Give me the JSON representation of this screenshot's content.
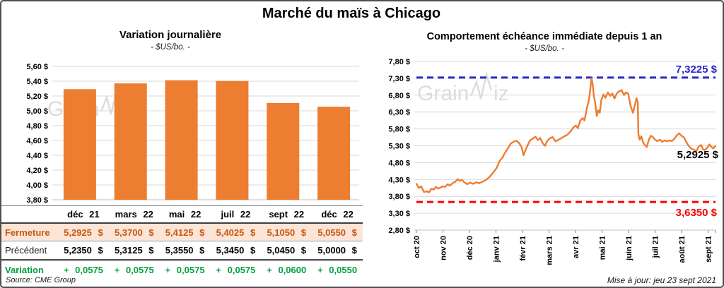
{
  "title": "Marché du maïs à Chicago",
  "footer": {
    "updated": "Mise à jour: jeu 23 sept 2021"
  },
  "watermark": {
    "left_text": "Grain",
    "right_text": "iz"
  },
  "colors": {
    "accent_orange": "#ED7D31",
    "fermeture_bg": "#FCE4D6",
    "fermeture_text": "#C55A11",
    "variation_green": "#00A13C",
    "high_blue": "#2929C8",
    "low_red": "#FE0000",
    "grid": "#D9D9D9",
    "axis": "#BFBFBF",
    "watermark": "#D9D9D9"
  },
  "table": {
    "columns": [
      "déc 21",
      "mars 22",
      "mai 22",
      "juil 22",
      "sept 22",
      "déc 22"
    ],
    "rows": [
      {
        "id": "fermeture",
        "label": "Fermeture",
        "values": [
          "5,2925 $",
          "5,3700 $",
          "5,4125 $",
          "5,4025 $",
          "5,1050 $",
          "5,0550 $"
        ]
      },
      {
        "id": "precedent",
        "label": "Précédent",
        "values": [
          "5,2350 $",
          "5,3125 $",
          "5,3550 $",
          "5,3450 $",
          "5,0450 $",
          "5,0000 $"
        ]
      },
      {
        "id": "variation",
        "label": "Variation",
        "values": [
          "+ 0,0575",
          "+ 0,0575",
          "+ 0,0575",
          "+ 0,0575",
          "+ 0,0600",
          "+ 0,0550"
        ]
      }
    ],
    "source": "Source: CME Group"
  },
  "chart_data": [
    {
      "id": "daily-variation",
      "type": "bar",
      "title": "Variation journalière",
      "subtitle": "- $US/bo. -",
      "categories": [
        "déc 21",
        "mars 22",
        "mai 22",
        "juil 22",
        "sept 22",
        "déc 22"
      ],
      "values": [
        5.2925,
        5.37,
        5.4125,
        5.4025,
        5.105,
        5.055
      ],
      "ylim": [
        3.8,
        5.6
      ],
      "y_ticks": [
        {
          "v": 5.6,
          "label": "5,60 $"
        },
        {
          "v": 5.4,
          "label": "5,40 $"
        },
        {
          "v": 5.2,
          "label": "5,20 $"
        },
        {
          "v": 5.0,
          "label": "5,00 $"
        },
        {
          "v": 4.8,
          "label": "4,80 $"
        },
        {
          "v": 4.6,
          "label": "4,60 $"
        },
        {
          "v": 4.4,
          "label": "4,40 $"
        },
        {
          "v": 4.2,
          "label": "4,20 $"
        },
        {
          "v": 4.0,
          "label": "4,00 $"
        },
        {
          "v": 3.8,
          "label": "3,80 $"
        }
      ],
      "grid": true,
      "legend": "none"
    },
    {
      "id": "front-month",
      "type": "line",
      "title": "Comportement échéance immédiate depuis 1 an",
      "subtitle": "- $US/bo. -",
      "x_labels": [
        "oct 20",
        "nov 20",
        "déc 20",
        "janv 21",
        "févr 21",
        "mars 21",
        "avr 21",
        "mai 21",
        "juin 21",
        "juil 21",
        "août 21",
        "sept 21"
      ],
      "x_range": "oct 2020 - 23 sept 2021",
      "ylim": [
        2.8,
        7.8
      ],
      "y_ticks": [
        {
          "v": 7.8,
          "label": "7,80 $"
        },
        {
          "v": 7.3,
          "label": "7,30 $"
        },
        {
          "v": 6.8,
          "label": "6,80 $"
        },
        {
          "v": 6.3,
          "label": "6,30 $"
        },
        {
          "v": 5.8,
          "label": "5,80 $"
        },
        {
          "v": 5.3,
          "label": "5,30 $"
        },
        {
          "v": 4.8,
          "label": "4,80 $"
        },
        {
          "v": 4.3,
          "label": "4,30 $"
        },
        {
          "v": 3.8,
          "label": "3,80 $"
        },
        {
          "v": 3.3,
          "label": "3,30 $"
        },
        {
          "v": 2.8,
          "label": "2,80 $"
        }
      ],
      "high_line": {
        "value": 7.3225,
        "label": "7,3225 $"
      },
      "low_line": {
        "value": 3.635,
        "label": "3,6350 $"
      },
      "last_point": {
        "value": 5.2925,
        "label": "5,2925 $"
      },
      "grid": true,
      "legend": "none",
      "series": [
        {
          "name": "échéance immédiate",
          "points": [
            [
              0.0,
              4.17
            ],
            [
              0.008,
              4.05
            ],
            [
              0.016,
              4.1
            ],
            [
              0.025,
              3.93
            ],
            [
              0.035,
              3.95
            ],
            [
              0.042,
              3.92
            ],
            [
              0.05,
              4.03
            ],
            [
              0.058,
              4.0
            ],
            [
              0.065,
              4.08
            ],
            [
              0.072,
              4.03
            ],
            [
              0.08,
              4.06
            ],
            [
              0.088,
              4.1
            ],
            [
              0.096,
              4.08
            ],
            [
              0.104,
              4.16
            ],
            [
              0.112,
              4.12
            ],
            [
              0.122,
              4.2
            ],
            [
              0.13,
              4.23
            ],
            [
              0.138,
              4.31
            ],
            [
              0.145,
              4.26
            ],
            [
              0.152,
              4.29
            ],
            [
              0.16,
              4.22
            ],
            [
              0.17,
              4.16
            ],
            [
              0.18,
              4.21
            ],
            [
              0.19,
              4.17
            ],
            [
              0.2,
              4.22
            ],
            [
              0.21,
              4.19
            ],
            [
              0.222,
              4.24
            ],
            [
              0.232,
              4.28
            ],
            [
              0.245,
              4.38
            ],
            [
              0.258,
              4.52
            ],
            [
              0.268,
              4.64
            ],
            [
              0.278,
              4.85
            ],
            [
              0.288,
              4.95
            ],
            [
              0.295,
              5.08
            ],
            [
              0.305,
              5.21
            ],
            [
              0.315,
              5.36
            ],
            [
              0.325,
              5.42
            ],
            [
              0.335,
              5.45
            ],
            [
              0.345,
              5.36
            ],
            [
              0.352,
              5.25
            ],
            [
              0.358,
              5.02
            ],
            [
              0.365,
              5.18
            ],
            [
              0.372,
              5.32
            ],
            [
              0.38,
              5.46
            ],
            [
              0.39,
              5.52
            ],
            [
              0.398,
              5.57
            ],
            [
              0.406,
              5.47
            ],
            [
              0.414,
              5.53
            ],
            [
              0.422,
              5.38
            ],
            [
              0.43,
              5.3
            ],
            [
              0.438,
              5.45
            ],
            [
              0.446,
              5.52
            ],
            [
              0.455,
              5.56
            ],
            [
              0.465,
              5.43
            ],
            [
              0.475,
              5.48
            ],
            [
              0.485,
              5.53
            ],
            [
              0.495,
              5.58
            ],
            [
              0.505,
              5.63
            ],
            [
              0.515,
              5.72
            ],
            [
              0.525,
              5.85
            ],
            [
              0.533,
              5.9
            ],
            [
              0.54,
              5.82
            ],
            [
              0.548,
              6.05
            ],
            [
              0.556,
              6.12
            ],
            [
              0.562,
              6.05
            ],
            [
              0.57,
              6.42
            ],
            [
              0.576,
              6.62
            ],
            [
              0.581,
              6.95
            ],
            [
              0.585,
              7.3
            ],
            [
              0.589,
              7.15
            ],
            [
              0.593,
              6.8
            ],
            [
              0.598,
              6.55
            ],
            [
              0.603,
              6.18
            ],
            [
              0.608,
              6.35
            ],
            [
              0.613,
              6.28
            ],
            [
              0.618,
              6.65
            ],
            [
              0.625,
              6.82
            ],
            [
              0.632,
              6.72
            ],
            [
              0.64,
              6.88
            ],
            [
              0.648,
              6.78
            ],
            [
              0.655,
              6.85
            ],
            [
              0.662,
              6.7
            ],
            [
              0.67,
              6.85
            ],
            [
              0.678,
              6.92
            ],
            [
              0.686,
              6.95
            ],
            [
              0.694,
              6.8
            ],
            [
              0.7,
              6.88
            ],
            [
              0.708,
              6.85
            ],
            [
              0.716,
              6.48
            ],
            [
              0.724,
              6.28
            ],
            [
              0.73,
              6.5
            ],
            [
              0.736,
              6.71
            ],
            [
              0.74,
              6.6
            ],
            [
              0.742,
              5.65
            ],
            [
              0.746,
              5.48
            ],
            [
              0.752,
              5.58
            ],
            [
              0.758,
              5.4
            ],
            [
              0.764,
              5.32
            ],
            [
              0.77,
              5.26
            ],
            [
              0.778,
              5.5
            ],
            [
              0.784,
              5.6
            ],
            [
              0.79,
              5.56
            ],
            [
              0.798,
              5.48
            ],
            [
              0.806,
              5.44
            ],
            [
              0.814,
              5.48
            ],
            [
              0.822,
              5.42
            ],
            [
              0.83,
              5.46
            ],
            [
              0.838,
              5.43
            ],
            [
              0.846,
              5.46
            ],
            [
              0.854,
              5.44
            ],
            [
              0.862,
              5.5
            ],
            [
              0.87,
              5.6
            ],
            [
              0.878,
              5.67
            ],
            [
              0.886,
              5.6
            ],
            [
              0.894,
              5.55
            ],
            [
              0.902,
              5.42
            ],
            [
              0.91,
              5.3
            ],
            [
              0.918,
              5.22
            ],
            [
              0.928,
              5.18
            ],
            [
              0.936,
              5.14
            ],
            [
              0.944,
              5.28
            ],
            [
              0.952,
              5.32
            ],
            [
              0.958,
              5.2
            ],
            [
              0.964,
              5.17
            ],
            [
              0.972,
              5.24
            ],
            [
              0.98,
              5.34
            ],
            [
              0.986,
              5.27
            ],
            [
              0.993,
              5.22
            ],
            [
              1.0,
              5.3
            ]
          ]
        }
      ]
    }
  ]
}
